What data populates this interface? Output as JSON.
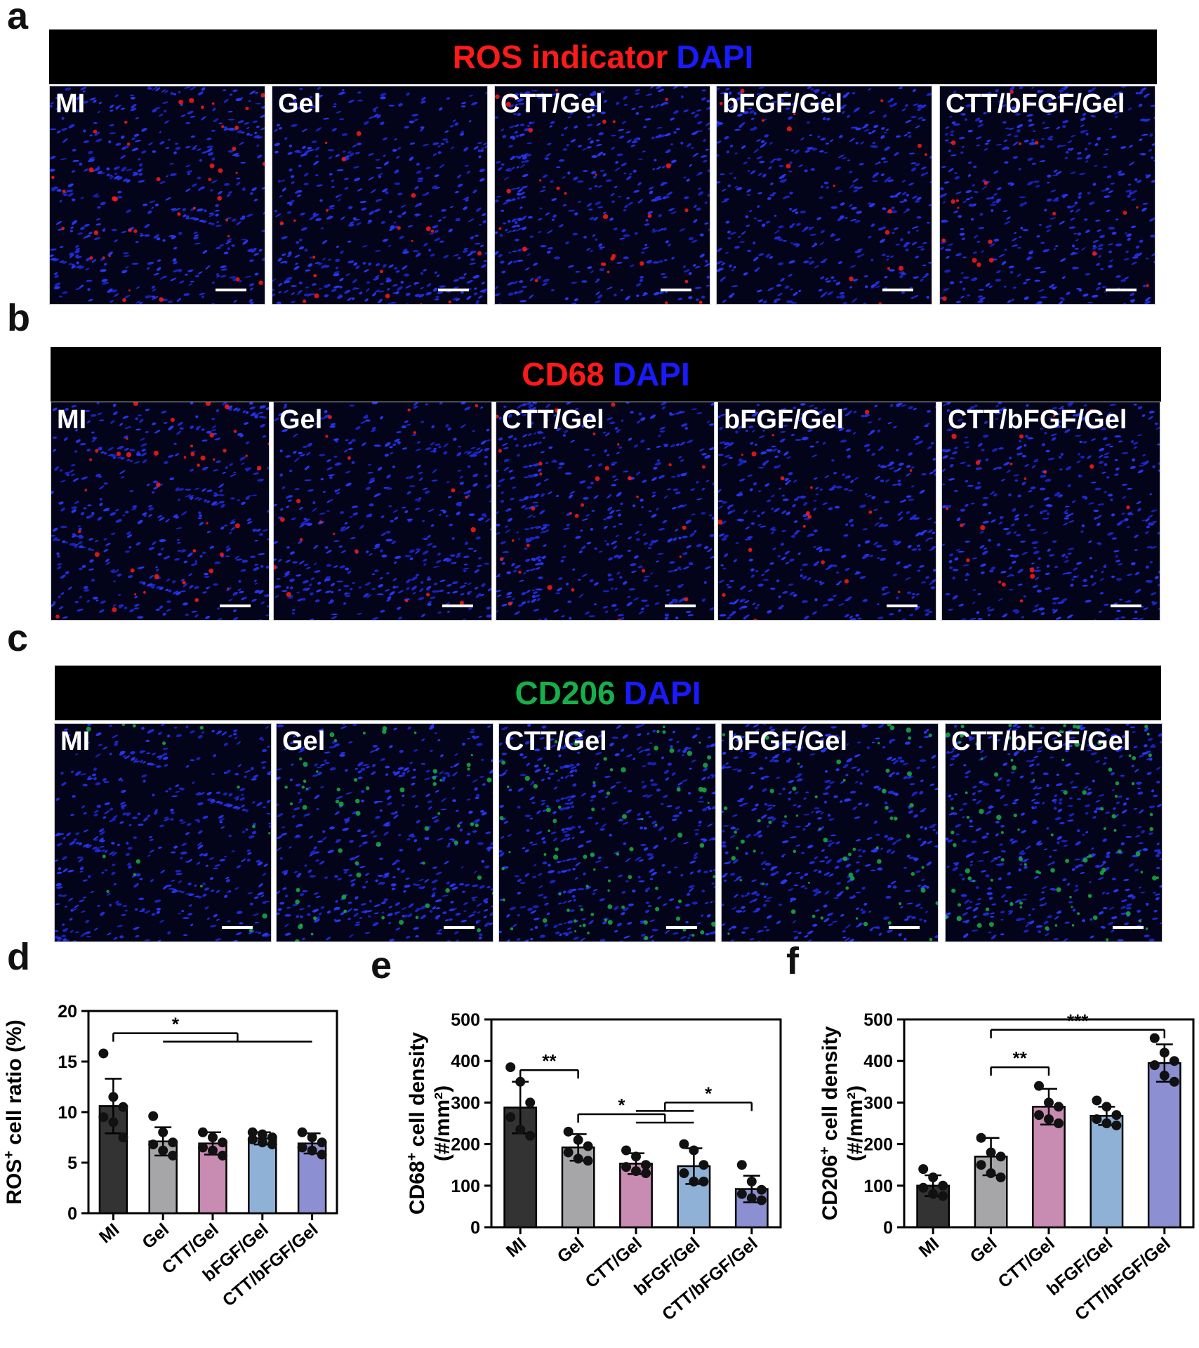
{
  "panels": {
    "a": "a",
    "b": "b",
    "c": "c",
    "d": "d",
    "e": "e",
    "f": "f"
  },
  "colors": {
    "red": "#ff1a1a",
    "blue": "#1a1aff",
    "green": "#16b04a",
    "MI": "#333333",
    "Gel": "#a6a6a8",
    "CTT/Gel": "#c88bb1",
    "bFGF/Gel": "#8fb1d6",
    "CTT/bFGF/Gel": "#8c8fd1"
  },
  "rows": [
    {
      "marker": "ROS indicator",
      "marker_color": "red",
      "counterstain": "DAPI",
      "tiles": [
        "MI",
        "Gel",
        "CTT/Gel",
        "bFGF/Gel",
        "CTT/bFGF/Gel"
      ]
    },
    {
      "marker": "CD68",
      "marker_color": "red",
      "counterstain": "DAPI",
      "tiles": [
        "MI",
        "Gel",
        "CTT/Gel",
        "bFGF/Gel",
        "CTT/bFGF/Gel"
      ]
    },
    {
      "marker": "CD206",
      "marker_color": "green",
      "counterstain": "DAPI",
      "tiles": [
        "MI",
        "Gel",
        "CTT/Gel",
        "bFGF/Gel",
        "CTT/bFGF/Gel"
      ]
    }
  ],
  "chart_data": [
    {
      "type": "bar",
      "categories": [
        "MI",
        "Gel",
        "CTT/Gel",
        "bFGF/Gel",
        "CTT/bFGF/Gel"
      ],
      "values": [
        10.6,
        7.1,
        6.9,
        7.4,
        6.9
      ],
      "sd": [
        2.7,
        1.4,
        1.1,
        0.6,
        1.0
      ],
      "points": [
        [
          15.8,
          11.5,
          10.5,
          9.5,
          9.0,
          7.5
        ],
        [
          9.6,
          8.0,
          7.0,
          6.8,
          6.2,
          5.7
        ],
        [
          8.0,
          7.5,
          7.0,
          6.5,
          6.2,
          5.7
        ],
        [
          8.0,
          7.8,
          7.5,
          7.3,
          7.0,
          6.8
        ],
        [
          8.0,
          7.5,
          7.0,
          6.5,
          6.2,
          5.8
        ]
      ],
      "ylabel_main": "ROS",
      "ylabel_sup": "+",
      "ylabel_rest": " cell ratio (%)",
      "ylabel_line2": "",
      "ylim": [
        0,
        20
      ],
      "yticks": [
        0,
        5,
        10,
        15,
        20
      ],
      "brackets": [
        {
          "from": [
            0
          ],
          "to": [
            1,
            4
          ],
          "y": 17.8,
          "label": "*"
        }
      ]
    },
    {
      "type": "bar",
      "categories": [
        "MI",
        "Gel",
        "CTT/Gel",
        "bFGF/Gel",
        "CTT/bFGF/Gel"
      ],
      "values": [
        288,
        192,
        153,
        147,
        92
      ],
      "sd": [
        62,
        32,
        25,
        43,
        32
      ],
      "points": [
        [
          385,
          350,
          300,
          265,
          235,
          220
        ],
        [
          230,
          210,
          195,
          180,
          165,
          160
        ],
        [
          185,
          170,
          150,
          145,
          135,
          130
        ],
        [
          200,
          185,
          150,
          130,
          110,
          110
        ],
        [
          150,
          110,
          90,
          80,
          70,
          65
        ]
      ],
      "ylabel_main": "CD68",
      "ylabel_sup": "+",
      "ylabel_rest": " cell density",
      "ylabel_line2": "(#/mm²)",
      "ylim": [
        0,
        500
      ],
      "yticks": [
        0,
        100,
        200,
        300,
        400,
        500
      ],
      "brackets": [
        {
          "from": [
            0
          ],
          "to": [
            1
          ],
          "y": 378,
          "label": "**"
        },
        {
          "from": [
            1
          ],
          "to": [
            2,
            3
          ],
          "y": 272,
          "label": "*"
        },
        {
          "from": [
            2,
            3
          ],
          "to": [
            4
          ],
          "y": 300,
          "label": "*"
        }
      ]
    },
    {
      "type": "bar",
      "categories": [
        "MI",
        "Gel",
        "CTT/Gel",
        "bFGF/Gel",
        "CTT/bFGF/Gel"
      ],
      "values": [
        100,
        170,
        290,
        268,
        395
      ],
      "sd": [
        25,
        45,
        43,
        22,
        45
      ],
      "points": [
        [
          140,
          120,
          100,
          95,
          80,
          75
        ],
        [
          215,
          180,
          170,
          150,
          130,
          120
        ],
        [
          340,
          300,
          290,
          270,
          260,
          250
        ],
        [
          305,
          290,
          270,
          260,
          250,
          245
        ],
        [
          455,
          420,
          400,
          390,
          365,
          350
        ]
      ],
      "ylabel_main": "CD206",
      "ylabel_sup": "+",
      "ylabel_rest": " cell density",
      "ylabel_line2": "(#/mm²)",
      "ylim": [
        0,
        500
      ],
      "yticks": [
        0,
        100,
        200,
        300,
        400,
        500
      ],
      "brackets": [
        {
          "from": [
            1
          ],
          "to": [
            2
          ],
          "y": 385,
          "label": "**"
        },
        {
          "from": [
            1
          ],
          "to": [
            4
          ],
          "y": 475,
          "label": "***"
        }
      ]
    }
  ]
}
